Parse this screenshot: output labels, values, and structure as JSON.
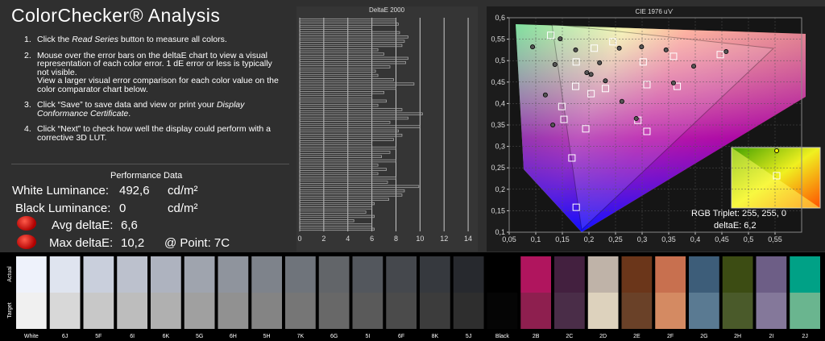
{
  "header": {
    "title": "ColorChecker® Analysis"
  },
  "instructions": [
    {
      "number": "1.",
      "pre": "Click the ",
      "em": "Read Series",
      "post": " button to measure all colors."
    },
    {
      "number": "2.",
      "text": "Mouse over the error bars on the deltaE chart to view a visual representation of each color error. 1 dE error or less is typically not visible.",
      "extra": "View a larger visual error comparison for each color value on the color comparator chart below."
    },
    {
      "number": "3.",
      "pre": "Click “Save” to save data and view or print your ",
      "em": "Display Conformance Certificate",
      "post": "."
    },
    {
      "number": "4.",
      "text": "Click “Next” to check how well the display could perform with a corrective 3D LUT."
    }
  ],
  "performance": {
    "title": "Performance Data",
    "white_label": "White Luminance:",
    "white_value": "492,6",
    "white_unit": "cd/m²",
    "black_label": "Black Luminance:",
    "black_value": "0",
    "black_unit": "cd/m²",
    "avg_label": "Avg deltaE:",
    "avg_value": "6,6",
    "max_label": "Max deltaE:",
    "max_value": "10,2",
    "point": "@ Point: 7C"
  },
  "chart_data": [
    {
      "type": "hbar",
      "title": "DeltaE 2000",
      "color": "#a8a8a8",
      "grid": true,
      "categories": [
        null,
        null,
        null,
        null,
        null,
        null,
        null,
        null,
        null,
        null,
        null,
        null,
        null,
        null,
        null,
        null,
        null,
        null,
        null,
        null,
        null,
        null,
        null,
        null,
        null,
        null,
        null,
        null,
        null,
        null,
        null,
        null,
        null,
        null,
        null,
        null,
        null,
        null,
        null,
        null,
        null,
        null,
        null,
        null,
        null,
        null,
        null,
        null,
        null,
        null
      ],
      "values": [
        8,
        8.2,
        6,
        8.3,
        9,
        8.7,
        8.5,
        6.5,
        7,
        9,
        8.8,
        7.5,
        6.3,
        6.5,
        7.8,
        9.5,
        8,
        7,
        6,
        7.2,
        6.5,
        8.5,
        10.2,
        9,
        7.5,
        10,
        8.2,
        8.5,
        7.8,
        6,
        8,
        7.5,
        6.8,
        8,
        6.5,
        7.2,
        6.5,
        8,
        7.3,
        9.9,
        8.7,
        8.5,
        7.4,
        6.2,
        6,
        5.5,
        6.2,
        4.5,
        6,
        6.2
      ],
      "xlim": [
        0,
        15
      ],
      "xticks": [
        0,
        2,
        4,
        6,
        8,
        10,
        12,
        14
      ]
    },
    {
      "type": "scatter",
      "title": "CIE 1976 u'v'",
      "grid": true,
      "xlim": [
        0.05,
        0.6
      ],
      "ylim": [
        0.1,
        0.6
      ],
      "xticks": [
        {
          "value": 0.05,
          "label": "0,05"
        },
        {
          "value": 0.1,
          "label": "0,1"
        },
        {
          "value": 0.15,
          "label": "0,15"
        },
        {
          "value": 0.2,
          "label": "0,2"
        },
        {
          "value": 0.25,
          "label": "0,25"
        },
        {
          "value": 0.3,
          "label": "0,3"
        },
        {
          "value": 0.35,
          "label": "0,35"
        },
        {
          "value": 0.4,
          "label": "0,4"
        },
        {
          "value": 0.45,
          "label": "0,45"
        },
        {
          "value": 0.5,
          "label": "0,5"
        },
        {
          "value": 0.55,
          "label": "0,55"
        }
      ],
      "yticks": [
        {
          "value": 0.1,
          "label": "0,1"
        },
        {
          "value": 0.15,
          "label": "0,15"
        },
        {
          "value": 0.2,
          "label": "0,2"
        },
        {
          "value": 0.25,
          "label": "0,25"
        },
        {
          "value": 0.3,
          "label": "0,3"
        },
        {
          "value": 0.35,
          "label": "0,35"
        },
        {
          "value": 0.4,
          "label": "0,4"
        },
        {
          "value": 0.45,
          "label": "0,45"
        },
        {
          "value": 0.5,
          "label": "0,5"
        },
        {
          "value": 0.55,
          "label": "0,55"
        },
        {
          "value": 0.6,
          "label": "0,6"
        }
      ],
      "series": [
        {
          "marker": "square",
          "color": "#ffffff",
          "x": [
            0.128,
            0.176,
            0.168,
            0.153,
            0.149,
            0.245,
            0.309,
            0.366,
            0.359,
            0.447,
            0.302,
            0.231,
            0.175,
            0.204,
            0.194,
            0.309,
            0.292,
            0.176,
            0.21
          ],
          "y": [
            0.559,
            0.158,
            0.273,
            0.363,
            0.393,
            0.544,
            0.444,
            0.44,
            0.51,
            0.514,
            0.497,
            0.435,
            0.44,
            0.423,
            0.341,
            0.335,
            0.361,
            0.497,
            0.529
          ]
        },
        {
          "marker": "circle",
          "color": "#555555",
          "x": [
            0.094,
            0.196,
            0.204,
            0.262,
            0.289,
            0.359,
            0.118,
            0.132,
            0.257,
            0.299,
            0.345,
            0.397,
            0.458,
            0.231,
            0.175,
            0.146,
            0.22,
            0.136
          ],
          "y": [
            0.532,
            0.472,
            0.468,
            0.405,
            0.365,
            0.448,
            0.42,
            0.35,
            0.529,
            0.532,
            0.525,
            0.487,
            0.521,
            0.453,
            0.525,
            0.551,
            0.495,
            0.491
          ]
        }
      ],
      "inset": {
        "triplet": "RGB Triplet: 255, 255, 0",
        "delta": "deltaE: 6,2"
      }
    }
  ],
  "swatches": {
    "actual_label": "Actual",
    "target_label": "Target",
    "items": [
      {
        "name": "White",
        "actual": "#eef2fb",
        "target": "#f0f0f0"
      },
      {
        "name": "6J",
        "actual": "#dfe4ef",
        "target": "#d8d8d8"
      },
      {
        "name": "5F",
        "actual": "#c9cfdc",
        "target": "#c8c8c8"
      },
      {
        "name": "6I",
        "actual": "#bcc1cd",
        "target": "#bdbdbd"
      },
      {
        "name": "6K",
        "actual": "#aeb3bf",
        "target": "#b0b0b0"
      },
      {
        "name": "5G",
        "actual": "#9fa4ae",
        "target": "#a0a0a0"
      },
      {
        "name": "6H",
        "actual": "#8f949d",
        "target": "#919191"
      },
      {
        "name": "5H",
        "actual": "#7e838b",
        "target": "#848484"
      },
      {
        "name": "7K",
        "actual": "#6f747b",
        "target": "#767676"
      },
      {
        "name": "6G",
        "actual": "#626569",
        "target": "#686868"
      },
      {
        "name": "5I",
        "actual": "#53575d",
        "target": "#5a5a5a"
      },
      {
        "name": "6F",
        "actual": "#45484d",
        "target": "#4b4b4b"
      },
      {
        "name": "8K",
        "actual": "#36393e",
        "target": "#3c3c3c"
      },
      {
        "name": "5J",
        "actual": "#27292e",
        "target": "#2e2e2e"
      },
      {
        "name": "Black",
        "actual": "#000000",
        "target": "#050505"
      },
      {
        "name": "2B",
        "actual": "#b0155e",
        "target": "#8e1f4f"
      },
      {
        "name": "2C",
        "actual": "#43203f",
        "target": "#4a2d48"
      },
      {
        "name": "2D",
        "actual": "#bfb3a8",
        "target": "#ddd2bd"
      },
      {
        "name": "2E",
        "actual": "#6b361a",
        "target": "#6a4128"
      },
      {
        "name": "2F",
        "actual": "#c8704f",
        "target": "#d48a62"
      },
      {
        "name": "2G",
        "actual": "#3d5d79",
        "target": "#5a7a92"
      },
      {
        "name": "2H",
        "actual": "#3c4c13",
        "target": "#4a5a2a"
      },
      {
        "name": "2I",
        "actual": "#6d5e86",
        "target": "#84789a"
      },
      {
        "name": "2J",
        "actual": "#00a186",
        "target": "#6ab58f"
      }
    ]
  }
}
